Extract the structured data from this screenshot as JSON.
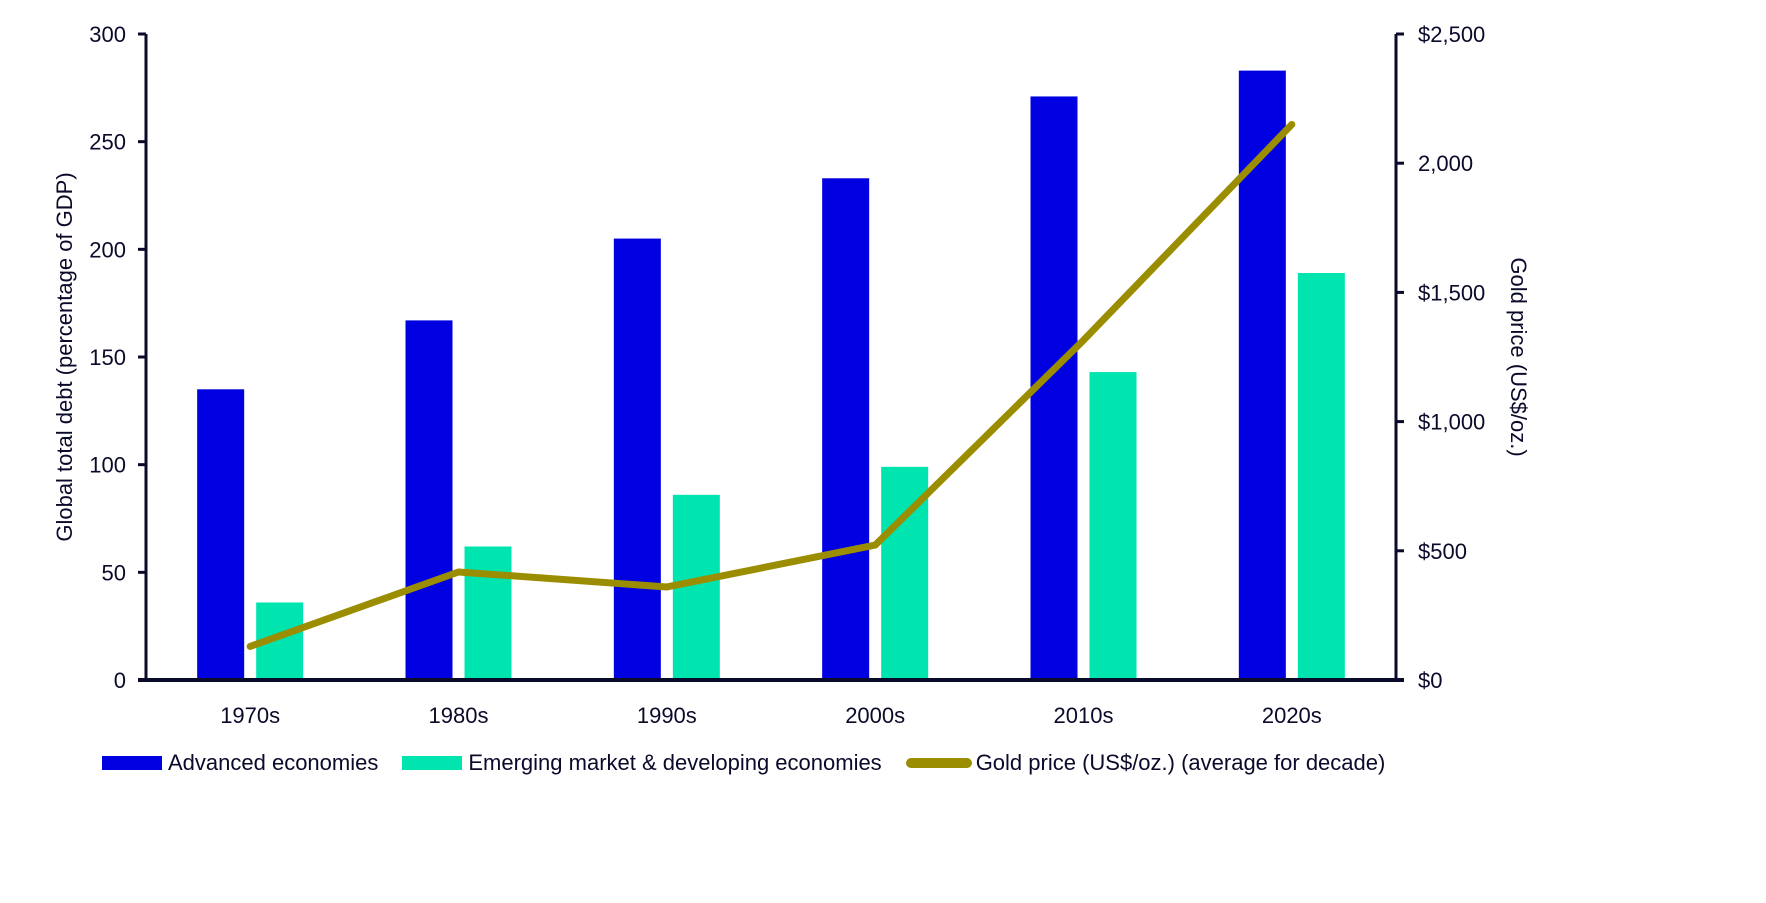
{
  "chart_data": {
    "type": "bar",
    "title": "",
    "categories": [
      "1970s",
      "1980s",
      "1990s",
      "2000s",
      "2010s",
      "2020s"
    ],
    "series": [
      {
        "name": "Advanced economies",
        "type": "bar",
        "axis": "left",
        "color": "#0000e0",
        "values": [
          135,
          167,
          205,
          233,
          271,
          283
        ]
      },
      {
        "name": "Emerging market & developing economies",
        "type": "bar",
        "axis": "left",
        "color": "#00e5b0",
        "values": [
          36,
          62,
          86,
          99,
          143,
          189
        ]
      },
      {
        "name": "Gold price (US$/oz.)  (average for decade)",
        "type": "line",
        "axis": "right",
        "color": "#9b8d00",
        "values": [
          130,
          418,
          360,
          522,
          1315,
          2150
        ]
      }
    ],
    "ylabel": "Global total debt (percentage of GDP)",
    "ylim": [
      0,
      300
    ],
    "yticks": [
      "0",
      "50",
      "100",
      "150",
      "200",
      "250",
      "300"
    ],
    "yticks_values": [
      0,
      50,
      100,
      150,
      200,
      250,
      300
    ],
    "y2label": "Gold price (US$/oz.)",
    "y2lim": [
      0,
      2500
    ],
    "y2ticks": [
      "$0",
      "$500",
      "$1,000",
      "$1,500",
      "2,000",
      "$2,500"
    ],
    "y2ticks_values": [
      0,
      500,
      1000,
      1500,
      2000,
      2500
    ],
    "xlabel": "",
    "grid": false,
    "legend_position": "bottom"
  },
  "legend": {
    "advanced": "Advanced economies",
    "emerging": "Emerging market & developing economies",
    "gold": "Gold price (US$/oz.)  (average for decade)"
  },
  "colors": {
    "advanced": "#0000e0",
    "emerging": "#00e5b0",
    "gold": "#9b8d00",
    "axis": "#0a0a2a"
  }
}
